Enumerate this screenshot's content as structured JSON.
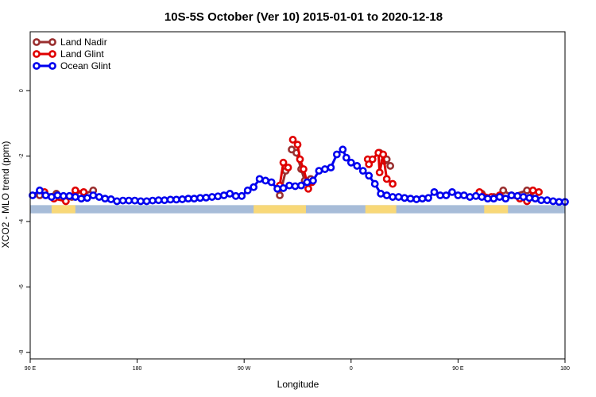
{
  "chart_data": {
    "type": "line",
    "title": "10S-5S October (Ver 10)   2015-01-01 to 2020-12-18",
    "xlabel": "Longitude",
    "ylabel": "XCO2 - MLO trend (ppm)",
    "xlim": [
      90,
      540
    ],
    "ylim": [
      -8.2,
      1.8
    ],
    "x_ticks": [
      {
        "value": 90,
        "label": "90 E"
      },
      {
        "value": 180,
        "label": "180"
      },
      {
        "value": 270,
        "label": "90 W"
      },
      {
        "value": 360,
        "label": "0"
      },
      {
        "value": 450,
        "label": "90 E"
      },
      {
        "value": 540,
        "label": "180"
      }
    ],
    "y_ticks": [
      {
        "value": 0,
        "label": "0"
      },
      {
        "value": -2,
        "label": "-2"
      },
      {
        "value": -4,
        "label": "-4"
      },
      {
        "value": -6,
        "label": "-6"
      },
      {
        "value": -8,
        "label": "-8"
      }
    ],
    "legend_position": "top-left",
    "land_strip": {
      "y_range": [
        -3.75,
        -3.5
      ],
      "ocean_color": "#a7bcd8",
      "land_color": "#f8d878",
      "segments": [
        [
          108,
          128
        ],
        [
          278,
          322
        ],
        [
          372,
          398
        ],
        [
          472,
          492
        ]
      ]
    },
    "series": [
      {
        "name": "Land Nadir",
        "color": "#9a3030",
        "segments": [
          [
            [
              98,
              -3.2
            ],
            [
              112,
              -3.15
            ],
            [
              125,
              -3.25
            ],
            [
              132,
              -3.2
            ],
            [
              143,
              -3.05
            ]
          ],
          [
            [
              300,
              -3.2
            ],
            [
              305,
              -2.45
            ]
          ],
          [
            [
              310,
              -1.8
            ],
            [
              314,
              -1.9
            ],
            [
              318,
              -2.4
            ],
            [
              321,
              -2.75
            ],
            [
              326,
              -2.7
            ]
          ],
          [
            [
              384,
              -1.9
            ],
            [
              388,
              -2.15
            ],
            [
              390,
              -2.1
            ],
            [
              393,
              -2.3
            ]
          ],
          [
            [
              470,
              -3.15
            ],
            [
              480,
              -3.25
            ],
            [
              488,
              -3.05
            ],
            [
              495,
              -3.2
            ],
            [
              508,
              -3.05
            ],
            [
              515,
              -3.15
            ]
          ]
        ]
      },
      {
        "name": "Land Glint",
        "color": "#e00000",
        "segments": [
          [
            [
              102,
              -3.1
            ],
            [
              110,
              -3.3
            ],
            [
              120,
              -3.38
            ],
            [
              128,
              -3.05
            ],
            [
              135,
              -3.1
            ]
          ],
          [
            [
              300,
              -2.9
            ],
            [
              303,
              -2.2
            ],
            [
              307,
              -2.35
            ]
          ],
          [
            [
              311,
              -1.5
            ],
            [
              315,
              -1.65
            ],
            [
              317,
              -2.1
            ],
            [
              320,
              -2.4
            ],
            [
              323,
              -2.8
            ],
            [
              324,
              -3.0
            ],
            [
              327,
              -2.8
            ]
          ],
          [
            [
              374,
              -2.1
            ],
            [
              375,
              -2.25
            ],
            [
              378,
              -2.1
            ],
            [
              383,
              -1.9
            ],
            [
              384,
              -2.5
            ],
            [
              387,
              -1.95
            ],
            [
              390,
              -2.7
            ],
            [
              395,
              -2.85
            ]
          ],
          [
            [
              468,
              -3.1
            ],
            [
              478,
              -3.25
            ],
            [
              485,
              -3.2
            ],
            [
              502,
              -3.3
            ],
            [
              508,
              -3.38
            ],
            [
              513,
              -3.05
            ],
            [
              518,
              -3.1
            ]
          ]
        ]
      },
      {
        "name": "Ocean Glint",
        "color": "#0000ee",
        "segments": [
          [
            [
              92,
              -3.2
            ],
            [
              98,
              -3.05
            ],
            [
              103,
              -3.2
            ],
            [
              108,
              -3.25
            ],
            [
              113,
              -3.2
            ],
            [
              118,
              -3.22
            ],
            [
              123,
              -3.22
            ],
            [
              128,
              -3.25
            ],
            [
              133,
              -3.3
            ],
            [
              138,
              -3.28
            ],
            [
              143,
              -3.2
            ],
            [
              148,
              -3.25
            ],
            [
              153,
              -3.3
            ],
            [
              158,
              -3.32
            ],
            [
              163,
              -3.38
            ],
            [
              168,
              -3.36
            ],
            [
              173,
              -3.36
            ],
            [
              178,
              -3.36
            ],
            [
              183,
              -3.38
            ],
            [
              188,
              -3.38
            ],
            [
              193,
              -3.36
            ],
            [
              198,
              -3.35
            ],
            [
              203,
              -3.35
            ],
            [
              208,
              -3.33
            ],
            [
              213,
              -3.33
            ],
            [
              218,
              -3.32
            ],
            [
              223,
              -3.3
            ],
            [
              228,
              -3.3
            ],
            [
              233,
              -3.28
            ],
            [
              238,
              -3.27
            ],
            [
              243,
              -3.25
            ],
            [
              248,
              -3.23
            ],
            [
              253,
              -3.2
            ],
            [
              258,
              -3.15
            ],
            [
              263,
              -3.22
            ],
            [
              268,
              -3.22
            ],
            [
              273,
              -3.05
            ],
            [
              278,
              -2.95
            ],
            [
              283,
              -2.7
            ],
            [
              288,
              -2.75
            ],
            [
              293,
              -2.8
            ],
            [
              298,
              -3.0
            ],
            [
              303,
              -2.98
            ],
            [
              308,
              -2.9
            ],
            [
              313,
              -2.92
            ],
            [
              318,
              -2.9
            ],
            [
              323,
              -2.8
            ],
            [
              328,
              -2.75
            ],
            [
              333,
              -2.45
            ],
            [
              338,
              -2.4
            ],
            [
              343,
              -2.35
            ],
            [
              348,
              -1.95
            ],
            [
              353,
              -1.8
            ],
            [
              356,
              -2.05
            ],
            [
              360,
              -2.2
            ],
            [
              365,
              -2.3
            ],
            [
              370,
              -2.45
            ],
            [
              375,
              -2.6
            ],
            [
              380,
              -2.85
            ],
            [
              385,
              -3.15
            ],
            [
              390,
              -3.2
            ],
            [
              395,
              -3.25
            ],
            [
              400,
              -3.25
            ],
            [
              405,
              -3.28
            ],
            [
              410,
              -3.3
            ],
            [
              415,
              -3.32
            ],
            [
              420,
              -3.3
            ],
            [
              425,
              -3.28
            ],
            [
              430,
              -3.1
            ],
            [
              435,
              -3.2
            ],
            [
              440,
              -3.2
            ],
            [
              445,
              -3.1
            ],
            [
              450,
              -3.2
            ],
            [
              455,
              -3.2
            ],
            [
              460,
              -3.25
            ],
            [
              465,
              -3.22
            ],
            [
              470,
              -3.25
            ],
            [
              475,
              -3.3
            ],
            [
              480,
              -3.3
            ],
            [
              485,
              -3.25
            ],
            [
              490,
              -3.3
            ],
            [
              495,
              -3.2
            ],
            [
              500,
              -3.22
            ],
            [
              505,
              -3.25
            ],
            [
              510,
              -3.28
            ],
            [
              515,
              -3.3
            ],
            [
              520,
              -3.35
            ],
            [
              525,
              -3.35
            ],
            [
              530,
              -3.38
            ],
            [
              535,
              -3.4
            ],
            [
              540,
              -3.4
            ]
          ]
        ]
      }
    ]
  }
}
